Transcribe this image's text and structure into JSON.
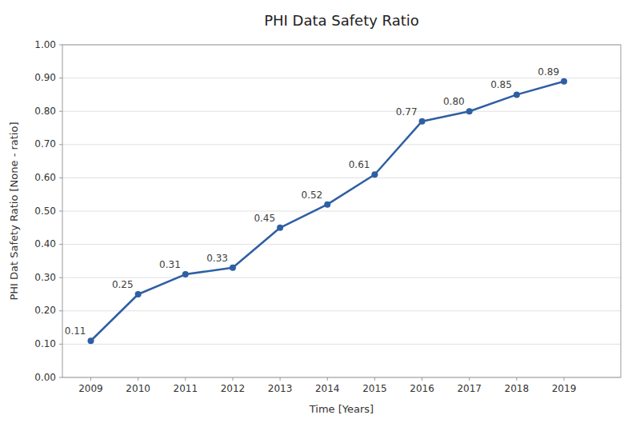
{
  "chart_data": {
    "type": "line",
    "title": "PHI Data Safety Ratio",
    "xlabel": "Time [Years]",
    "ylabel": "PHI Dat Safety Ratio [None - ratio]",
    "x": [
      2009,
      2010,
      2011,
      2012,
      2013,
      2014,
      2015,
      2016,
      2017,
      2018,
      2019
    ],
    "values": [
      0.11,
      0.25,
      0.31,
      0.33,
      0.45,
      0.52,
      0.61,
      0.77,
      0.8,
      0.85,
      0.89
    ],
    "value_labels": [
      "0.11",
      "0.25",
      "0.31",
      "0.33",
      "0.45",
      "0.52",
      "0.61",
      "0.77",
      "0.80",
      "0.85",
      "0.89"
    ],
    "data_labels": true,
    "color": "#2E5FA3",
    "marker": "circle",
    "xlim": [
      2008.4,
      2020.2
    ],
    "xticks": [
      2009,
      2010,
      2011,
      2012,
      2013,
      2014,
      2015,
      2016,
      2017,
      2018,
      2019
    ],
    "ylim": [
      0.0,
      1.0
    ],
    "yticks": [
      {
        "value": 0.0,
        "label": "0.00"
      },
      {
        "value": 0.1,
        "label": "0.10"
      },
      {
        "value": 0.2,
        "label": "0.20"
      },
      {
        "value": 0.3,
        "label": "0.30"
      },
      {
        "value": 0.4,
        "label": "0.40"
      },
      {
        "value": 0.5,
        "label": "0.50"
      },
      {
        "value": 0.6,
        "label": "0.60"
      },
      {
        "value": 0.7,
        "label": "0.70"
      },
      {
        "value": 0.8,
        "label": "0.80"
      },
      {
        "value": 0.9,
        "label": "0.90"
      },
      {
        "value": 1.0,
        "label": "1.00"
      }
    ],
    "grid": "y"
  }
}
